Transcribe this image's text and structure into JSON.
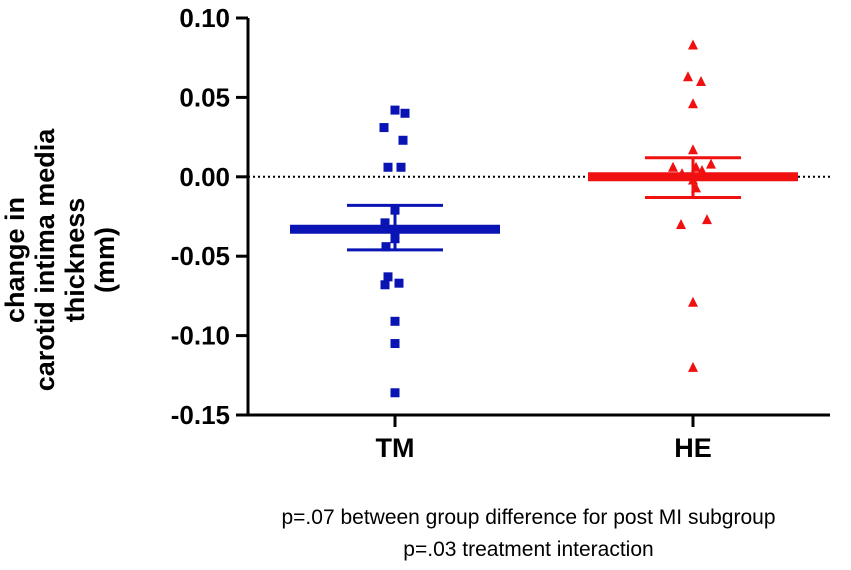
{
  "chart_data": {
    "type": "scatter",
    "ylabel_lines": [
      "change in",
      "carotid intima media",
      "thickness",
      "(mm)"
    ],
    "ylim": [
      -0.15,
      0.1
    ],
    "yticks": [
      "0.10",
      "0.05",
      "0.00",
      "-0.05",
      "-0.10",
      "-0.15"
    ],
    "ytick_values": [
      0.1,
      0.05,
      0.0,
      -0.05,
      -0.1,
      -0.15
    ],
    "reference_line": 0.0,
    "categories": [
      "TM",
      "HE"
    ],
    "series": [
      {
        "name": "TM",
        "marker": "square",
        "color": "#0a14b4",
        "values": [
          0.042,
          0.04,
          0.031,
          0.023,
          0.006,
          0.006,
          -0.021,
          -0.029,
          -0.034,
          -0.039,
          -0.044,
          -0.063,
          -0.067,
          -0.068,
          -0.091,
          -0.105,
          -0.136
        ],
        "mean": -0.033,
        "sem_upper": -0.018,
        "sem_lower": -0.046
      },
      {
        "name": "HE",
        "marker": "triangle",
        "color": "#f01010",
        "values": [
          0.083,
          0.063,
          0.06,
          0.046,
          0.017,
          0.008,
          0.006,
          0.006,
          0.004,
          0.002,
          -0.002,
          -0.007,
          -0.027,
          -0.03,
          -0.079,
          -0.12
        ],
        "mean": 0.0,
        "sem_upper": 0.012,
        "sem_lower": -0.013
      }
    ]
  },
  "notes": {
    "line1": "p=.07 between group difference for post MI subgroup",
    "line2": "p=.03 treatment interaction"
  }
}
